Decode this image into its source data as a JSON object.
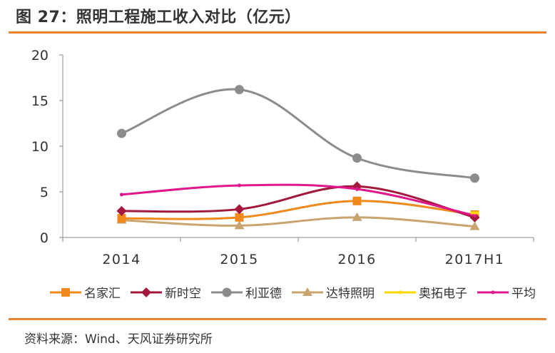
{
  "header": {
    "title": "图 27：照明工程施工收入对比（亿元）"
  },
  "chart_data": {
    "type": "line",
    "title": "照明工程施工收入对比（亿元）",
    "categories": [
      "2014",
      "2015",
      "2016",
      "2017H1"
    ],
    "yticks": [
      "0",
      "5",
      "10",
      "15",
      "20"
    ],
    "ylim": [
      0,
      20
    ],
    "xlabel": "",
    "ylabel": "",
    "grid": false,
    "legend_position": "bottom",
    "series": [
      {
        "name": "名家汇",
        "marker": "square",
        "color": "#F08A1C",
        "values": [
          2.1,
          2.2,
          4.0,
          2.5
        ]
      },
      {
        "name": "新时空",
        "marker": "diamond",
        "color": "#A3193D",
        "values": [
          2.9,
          3.1,
          5.6,
          2.2
        ]
      },
      {
        "name": "利亚德",
        "marker": "circle",
        "color": "#8C8C8C",
        "values": [
          11.4,
          16.2,
          8.7,
          6.5
        ]
      },
      {
        "name": "达特照明",
        "marker": "triangle",
        "color": "#C8A46E",
        "values": [
          1.9,
          1.3,
          2.2,
          1.2
        ]
      },
      {
        "name": "奥拓电子",
        "marker": "none",
        "color": "#FFD700",
        "values": [
          null,
          null,
          null,
          2.7
        ]
      },
      {
        "name": "平均",
        "marker": "none",
        "color": "#E0168B",
        "values": [
          4.7,
          5.7,
          5.3,
          2.4
        ]
      }
    ]
  },
  "footer": {
    "source": "资料来源：Wind、天风证券研究所"
  }
}
